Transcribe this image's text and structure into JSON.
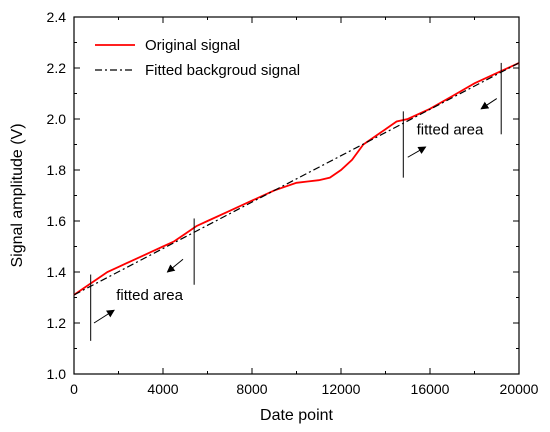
{
  "chart_data": {
    "type": "line",
    "xlabel": "Date point",
    "ylabel": "Signal amplitude (V)",
    "xlim": [
      0,
      20000
    ],
    "ylim": [
      1.0,
      2.4
    ],
    "xticks": [
      "0",
      "4000",
      "8000",
      "12000",
      "16000",
      "20000"
    ],
    "yticks": [
      "1.0",
      "1.2",
      "1.4",
      "1.6",
      "1.8",
      "2.0",
      "2.2",
      "2.4"
    ],
    "xtick_values": [
      0,
      4000,
      8000,
      12000,
      16000,
      20000
    ],
    "ytick_values": [
      1.0,
      1.2,
      1.4,
      1.6,
      1.8,
      2.0,
      2.2,
      2.4
    ],
    "grid": false,
    "legend_position": "top-left",
    "series": [
      {
        "name": "Original signal",
        "color": "#ff0000",
        "style": "solid",
        "x": [
          0,
          500,
          1000,
          1500,
          2000,
          2500,
          3000,
          3500,
          4000,
          4500,
          5000,
          5500,
          6000,
          7000,
          8000,
          9000,
          10000,
          10500,
          11000,
          11500,
          12000,
          12500,
          13000,
          13500,
          14000,
          14500,
          15000,
          16000,
          17000,
          18000,
          19000,
          20000
        ],
        "y": [
          1.31,
          1.34,
          1.37,
          1.4,
          1.42,
          1.44,
          1.46,
          1.48,
          1.5,
          1.52,
          1.55,
          1.58,
          1.6,
          1.64,
          1.68,
          1.72,
          1.75,
          1.755,
          1.76,
          1.77,
          1.8,
          1.84,
          1.9,
          1.93,
          1.96,
          1.99,
          2.0,
          2.04,
          2.09,
          2.14,
          2.18,
          2.22
        ]
      },
      {
        "name": "Fitted backgroud signal",
        "color": "#000000",
        "style": "dashdot",
        "x": [
          0,
          20000
        ],
        "y": [
          1.31,
          2.22
        ]
      }
    ],
    "annotations": [
      {
        "text": "fitted area",
        "x_from": 750,
        "x_to": 5400,
        "text_x": 1900,
        "text_y": 1.29,
        "arrow_left_start": [
          4900,
          1.45
        ],
        "arrow_left_end": [
          4200,
          1.4
        ],
        "arrow_right_start": [
          900,
          1.2
        ],
        "arrow_right_end": [
          1800,
          1.25
        ]
      },
      {
        "text": "fitted area",
        "x_from": 14800,
        "x_to": 19200,
        "text_x": 15400,
        "text_y": 1.94,
        "arrow_left_start": [
          19000,
          2.08
        ],
        "arrow_left_end": [
          18300,
          2.04
        ],
        "arrow_right_start": [
          15000,
          1.85
        ],
        "arrow_right_end": [
          15800,
          1.89
        ]
      }
    ]
  }
}
